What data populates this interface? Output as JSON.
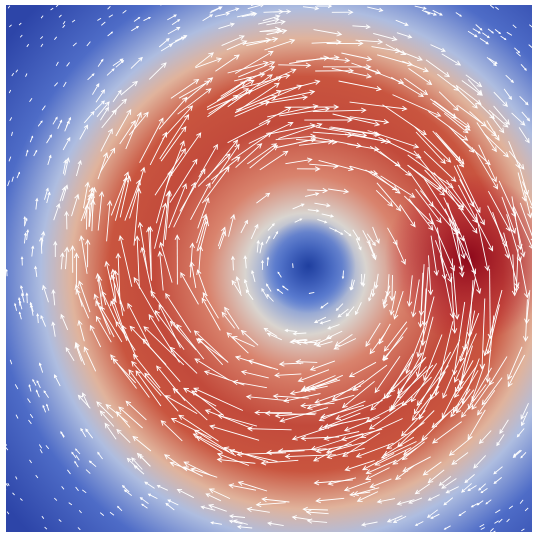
{
  "view": {
    "colormap": {
      "low": "#3b4cc0",
      "mid": "#e8e4df",
      "high": "#b40426",
      "peak": "#8e0217"
    },
    "arrow_color": "#ffffff",
    "background": "#ffffff"
  }
}
